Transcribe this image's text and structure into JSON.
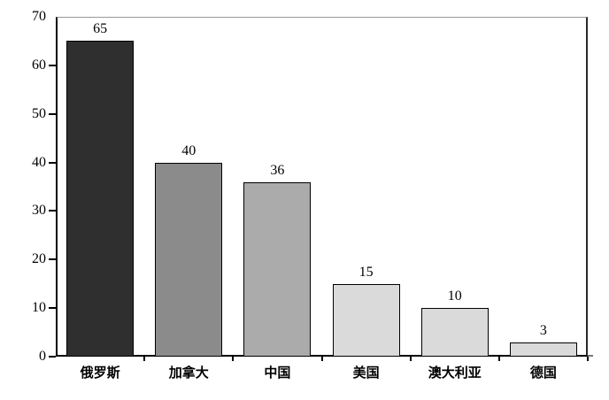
{
  "chart_data": {
    "type": "bar",
    "title": "",
    "xlabel": "",
    "ylabel": "",
    "categories": [
      "俄罗斯",
      "加拿大",
      "中国",
      "美国",
      "澳大利亚",
      "德国"
    ],
    "values": [
      65,
      40,
      36,
      15,
      10,
      3
    ],
    "data_labels": [
      "65",
      "40",
      "36",
      "15",
      "10",
      "3"
    ],
    "bar_colors": [
      "#2f2f2f",
      "#8b8b8b",
      "#ababab",
      "#dadada",
      "#dadada",
      "#dadada"
    ],
    "bar_border_color": "#000000",
    "ylim": [
      0,
      70
    ],
    "yticks": [
      0,
      10,
      20,
      30,
      40,
      50,
      60,
      70
    ],
    "ytick_labels": [
      "0",
      "10",
      "20",
      "30",
      "40",
      "50",
      "60",
      "70"
    ],
    "grid": false,
    "legend": false,
    "background": "#ffffff",
    "axis_color": "#000000",
    "plot_border_top_color": "#999999",
    "plot_border_right_color": "#2a2a2a",
    "text_color": "#000000"
  }
}
